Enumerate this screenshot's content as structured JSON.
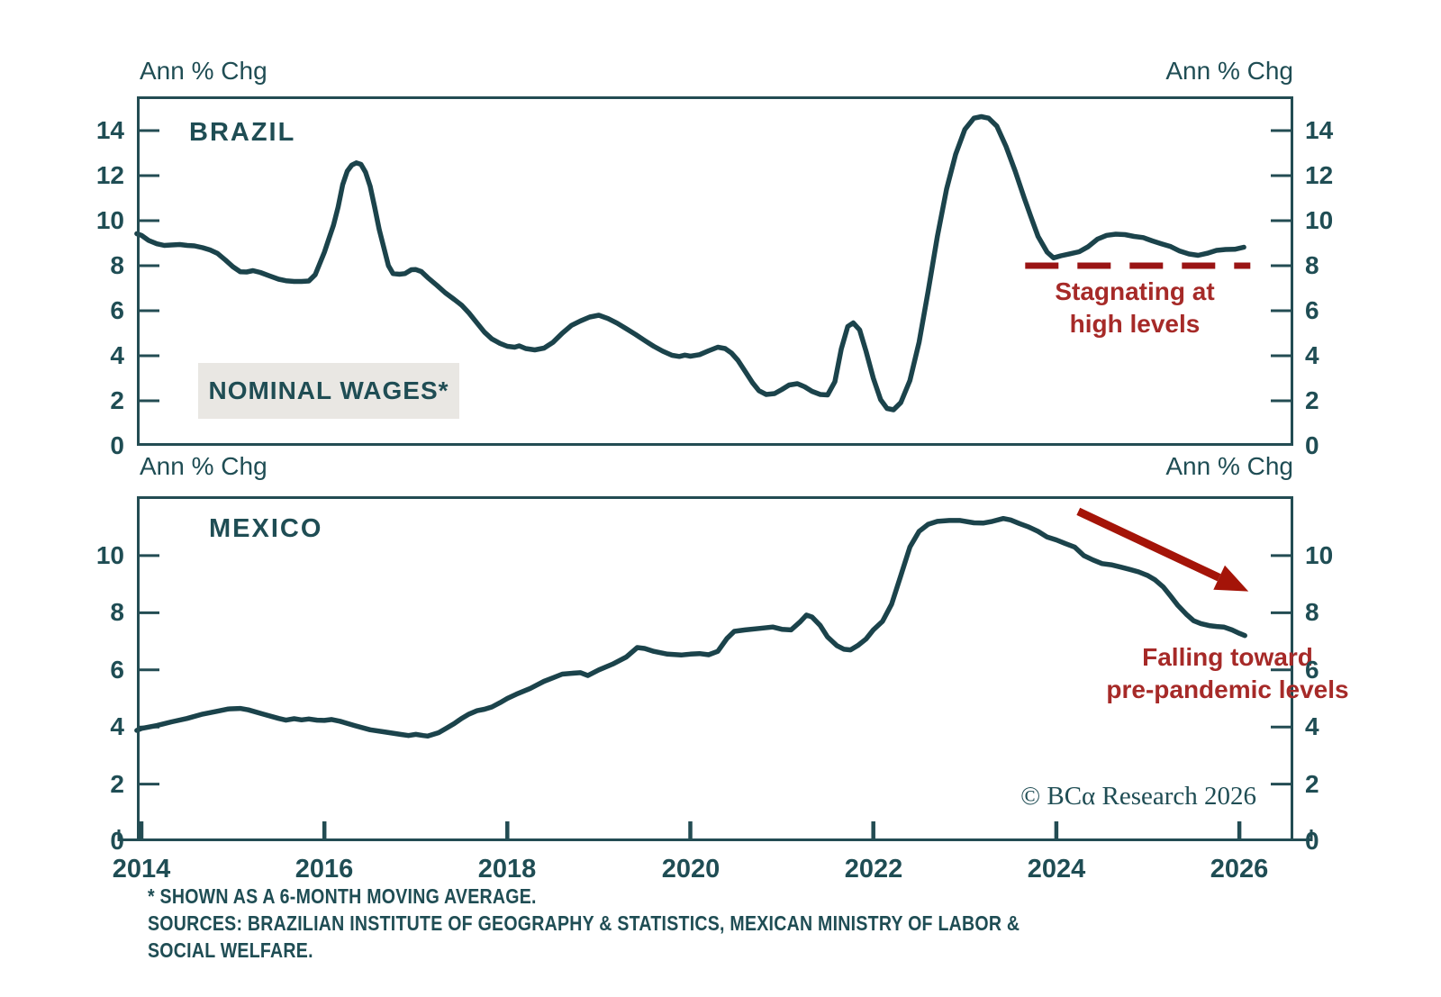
{
  "colors": {
    "teal_text": "#1f4d54",
    "line": "#1b434b",
    "frame": "#234c53",
    "red_dash": "#9a1414",
    "red_arrow": "#a41408",
    "red_text": "#a62a28",
    "label_box_bg": "#e9e7e3"
  },
  "units": {
    "top_left": "Ann % Chg",
    "top_right": "Ann % Chg",
    "bottom_left": "Ann % Chg",
    "bottom_right": "Ann % Chg"
  },
  "copyright": "© BCα Research 2026",
  "footnotes": [
    "* SHOWN AS A 6-MONTH MOVING AVERAGE.",
    "SOURCES: BRAZILIAN INSTITUTE OF GEOGRAPHY & STATISTICS, MEXICAN MINISTRY OF LABOR &",
    "SOCIAL WELFARE."
  ],
  "chart_data": [
    {
      "id": "brazil",
      "type": "line",
      "title": "BRAZIL",
      "series_label": "NOMINAL WAGES*",
      "ylabel": "Ann % Chg",
      "ylim": [
        0,
        15.52
      ],
      "yticks": [
        0,
        2,
        4,
        6,
        8,
        10,
        12,
        14
      ],
      "xlim": [
        2013.951,
        2026.59
      ],
      "xticks": [
        2014,
        2016,
        2018,
        2020,
        2022,
        2024,
        2026
      ],
      "xtick_labels": [
        "2014",
        "2016",
        "2018",
        "2020",
        "2022",
        "2024",
        "2026"
      ],
      "show_xticks": false,
      "grid": false,
      "annotation": {
        "text": [
          "Stagnating at",
          "high levels"
        ]
      },
      "ref_dash": {
        "y": 8,
        "from": 2023.66,
        "to": 2026.12
      },
      "points": [
        [
          2013.95,
          9.42
        ],
        [
          2014.0,
          9.35
        ],
        [
          2014.08,
          9.12
        ],
        [
          2014.17,
          8.97
        ],
        [
          2014.25,
          8.9
        ],
        [
          2014.33,
          8.92
        ],
        [
          2014.42,
          8.94
        ],
        [
          2014.5,
          8.9
        ],
        [
          2014.58,
          8.88
        ],
        [
          2014.67,
          8.8
        ],
        [
          2014.75,
          8.7
        ],
        [
          2014.83,
          8.55
        ],
        [
          2014.92,
          8.25
        ],
        [
          2015.0,
          7.95
        ],
        [
          2015.08,
          7.73
        ],
        [
          2015.15,
          7.72
        ],
        [
          2015.22,
          7.78
        ],
        [
          2015.3,
          7.7
        ],
        [
          2015.4,
          7.55
        ],
        [
          2015.5,
          7.4
        ],
        [
          2015.58,
          7.33
        ],
        [
          2015.67,
          7.3
        ],
        [
          2015.75,
          7.3
        ],
        [
          2015.83,
          7.32
        ],
        [
          2015.9,
          7.6
        ],
        [
          2015.95,
          8.1
        ],
        [
          2016.0,
          8.6
        ],
        [
          2016.05,
          9.2
        ],
        [
          2016.1,
          9.8
        ],
        [
          2016.15,
          10.6
        ],
        [
          2016.2,
          11.6
        ],
        [
          2016.25,
          12.2
        ],
        [
          2016.3,
          12.47
        ],
        [
          2016.35,
          12.57
        ],
        [
          2016.4,
          12.5
        ],
        [
          2016.45,
          12.15
        ],
        [
          2016.5,
          11.53
        ],
        [
          2016.55,
          10.6
        ],
        [
          2016.6,
          9.6
        ],
        [
          2016.65,
          8.8
        ],
        [
          2016.7,
          8.0
        ],
        [
          2016.75,
          7.65
        ],
        [
          2016.82,
          7.62
        ],
        [
          2016.88,
          7.65
        ],
        [
          2016.95,
          7.82
        ],
        [
          2017.0,
          7.83
        ],
        [
          2017.06,
          7.74
        ],
        [
          2017.13,
          7.47
        ],
        [
          2017.23,
          7.13
        ],
        [
          2017.32,
          6.8
        ],
        [
          2017.42,
          6.5
        ],
        [
          2017.5,
          6.25
        ],
        [
          2017.58,
          5.9
        ],
        [
          2017.67,
          5.45
        ],
        [
          2017.75,
          5.05
        ],
        [
          2017.83,
          4.75
        ],
        [
          2017.92,
          4.55
        ],
        [
          2018.0,
          4.42
        ],
        [
          2018.08,
          4.38
        ],
        [
          2018.13,
          4.44
        ],
        [
          2018.2,
          4.32
        ],
        [
          2018.3,
          4.26
        ],
        [
          2018.4,
          4.34
        ],
        [
          2018.5,
          4.6
        ],
        [
          2018.6,
          5.0
        ],
        [
          2018.7,
          5.35
        ],
        [
          2018.8,
          5.55
        ],
        [
          2018.9,
          5.72
        ],
        [
          2019.0,
          5.8
        ],
        [
          2019.1,
          5.65
        ],
        [
          2019.2,
          5.45
        ],
        [
          2019.3,
          5.2
        ],
        [
          2019.4,
          4.95
        ],
        [
          2019.5,
          4.68
        ],
        [
          2019.6,
          4.42
        ],
        [
          2019.7,
          4.2
        ],
        [
          2019.8,
          4.02
        ],
        [
          2019.88,
          3.97
        ],
        [
          2019.94,
          4.03
        ],
        [
          2020.0,
          3.98
        ],
        [
          2020.1,
          4.05
        ],
        [
          2020.2,
          4.22
        ],
        [
          2020.3,
          4.38
        ],
        [
          2020.38,
          4.32
        ],
        [
          2020.45,
          4.12
        ],
        [
          2020.52,
          3.8
        ],
        [
          2020.6,
          3.3
        ],
        [
          2020.68,
          2.8
        ],
        [
          2020.75,
          2.45
        ],
        [
          2020.83,
          2.28
        ],
        [
          2020.92,
          2.32
        ],
        [
          2021.0,
          2.5
        ],
        [
          2021.08,
          2.7
        ],
        [
          2021.17,
          2.76
        ],
        [
          2021.25,
          2.62
        ],
        [
          2021.33,
          2.42
        ],
        [
          2021.42,
          2.28
        ],
        [
          2021.5,
          2.26
        ],
        [
          2021.58,
          2.85
        ],
        [
          2021.65,
          4.3
        ],
        [
          2021.72,
          5.3
        ],
        [
          2021.78,
          5.46
        ],
        [
          2021.85,
          5.15
        ],
        [
          2021.92,
          4.2
        ],
        [
          2022.0,
          3.0
        ],
        [
          2022.08,
          2.05
        ],
        [
          2022.15,
          1.66
        ],
        [
          2022.22,
          1.6
        ],
        [
          2022.3,
          1.92
        ],
        [
          2022.4,
          2.9
        ],
        [
          2022.5,
          4.6
        ],
        [
          2022.6,
          6.9
        ],
        [
          2022.7,
          9.3
        ],
        [
          2022.8,
          11.4
        ],
        [
          2022.9,
          12.95
        ],
        [
          2023.0,
          14.05
        ],
        [
          2023.1,
          14.55
        ],
        [
          2023.18,
          14.62
        ],
        [
          2023.26,
          14.55
        ],
        [
          2023.35,
          14.2
        ],
        [
          2023.45,
          13.3
        ],
        [
          2023.55,
          12.2
        ],
        [
          2023.65,
          11.0
        ],
        [
          2023.72,
          10.2
        ],
        [
          2023.8,
          9.3
        ],
        [
          2023.9,
          8.6
        ],
        [
          2023.97,
          8.35
        ],
        [
          2024.05,
          8.44
        ],
        [
          2024.15,
          8.53
        ],
        [
          2024.25,
          8.62
        ],
        [
          2024.35,
          8.85
        ],
        [
          2024.45,
          9.18
        ],
        [
          2024.55,
          9.35
        ],
        [
          2024.65,
          9.4
        ],
        [
          2024.75,
          9.38
        ],
        [
          2024.85,
          9.3
        ],
        [
          2024.95,
          9.25
        ],
        [
          2025.05,
          9.1
        ],
        [
          2025.15,
          8.97
        ],
        [
          2025.25,
          8.85
        ],
        [
          2025.35,
          8.65
        ],
        [
          2025.45,
          8.52
        ],
        [
          2025.55,
          8.46
        ],
        [
          2025.65,
          8.55
        ],
        [
          2025.75,
          8.68
        ],
        [
          2025.85,
          8.72
        ],
        [
          2025.95,
          8.73
        ],
        [
          2026.05,
          8.82
        ]
      ]
    },
    {
      "id": "mexico",
      "type": "line",
      "title": "MEXICO",
      "ylabel": "Ann % Chg",
      "ylim": [
        0,
        12.08
      ],
      "yticks": [
        0,
        2,
        4,
        6,
        8,
        10
      ],
      "xlim": [
        2013.951,
        2026.59
      ],
      "xticks": [
        2014,
        2016,
        2018,
        2020,
        2022,
        2024,
        2026
      ],
      "xtick_labels": [
        "2014",
        "2016",
        "2018",
        "2020",
        "2022",
        "2024",
        "2026"
      ],
      "show_xticks": true,
      "grid": false,
      "annotation": {
        "text": [
          "Falling toward",
          "pre-pandemic levels"
        ]
      },
      "arrow": {
        "from": [
          2024.24,
          11.55
        ],
        "to": [
          2026.1,
          8.75
        ]
      },
      "points": [
        [
          2013.95,
          3.88
        ],
        [
          2014.0,
          3.95
        ],
        [
          2014.17,
          4.05
        ],
        [
          2014.33,
          4.18
        ],
        [
          2014.5,
          4.3
        ],
        [
          2014.67,
          4.45
        ],
        [
          2014.83,
          4.55
        ],
        [
          2014.95,
          4.63
        ],
        [
          2015.08,
          4.65
        ],
        [
          2015.17,
          4.6
        ],
        [
          2015.33,
          4.45
        ],
        [
          2015.5,
          4.3
        ],
        [
          2015.58,
          4.24
        ],
        [
          2015.67,
          4.29
        ],
        [
          2015.75,
          4.25
        ],
        [
          2015.83,
          4.28
        ],
        [
          2015.92,
          4.24
        ],
        [
          2016.0,
          4.23
        ],
        [
          2016.08,
          4.26
        ],
        [
          2016.17,
          4.2
        ],
        [
          2016.33,
          4.05
        ],
        [
          2016.5,
          3.9
        ],
        [
          2016.67,
          3.82
        ],
        [
          2016.83,
          3.74
        ],
        [
          2016.92,
          3.7
        ],
        [
          2017.0,
          3.74
        ],
        [
          2017.08,
          3.7
        ],
        [
          2017.13,
          3.68
        ],
        [
          2017.25,
          3.8
        ],
        [
          2017.33,
          3.95
        ],
        [
          2017.42,
          4.12
        ],
        [
          2017.5,
          4.3
        ],
        [
          2017.58,
          4.45
        ],
        [
          2017.67,
          4.57
        ],
        [
          2017.75,
          4.62
        ],
        [
          2017.83,
          4.7
        ],
        [
          2017.92,
          4.85
        ],
        [
          2018.0,
          5.0
        ],
        [
          2018.1,
          5.15
        ],
        [
          2018.25,
          5.35
        ],
        [
          2018.4,
          5.6
        ],
        [
          2018.5,
          5.72
        ],
        [
          2018.6,
          5.85
        ],
        [
          2018.7,
          5.88
        ],
        [
          2018.8,
          5.9
        ],
        [
          2018.88,
          5.8
        ],
        [
          2019.0,
          6.0
        ],
        [
          2019.15,
          6.2
        ],
        [
          2019.3,
          6.45
        ],
        [
          2019.42,
          6.78
        ],
        [
          2019.5,
          6.75
        ],
        [
          2019.6,
          6.65
        ],
        [
          2019.75,
          6.55
        ],
        [
          2019.9,
          6.52
        ],
        [
          2020.0,
          6.55
        ],
        [
          2020.1,
          6.57
        ],
        [
          2020.2,
          6.53
        ],
        [
          2020.3,
          6.65
        ],
        [
          2020.4,
          7.1
        ],
        [
          2020.48,
          7.35
        ],
        [
          2020.6,
          7.4
        ],
        [
          2020.75,
          7.45
        ],
        [
          2020.9,
          7.5
        ],
        [
          2021.0,
          7.42
        ],
        [
          2021.1,
          7.4
        ],
        [
          2021.2,
          7.68
        ],
        [
          2021.27,
          7.92
        ],
        [
          2021.33,
          7.85
        ],
        [
          2021.42,
          7.55
        ],
        [
          2021.5,
          7.15
        ],
        [
          2021.6,
          6.85
        ],
        [
          2021.68,
          6.72
        ],
        [
          2021.75,
          6.7
        ],
        [
          2021.83,
          6.85
        ],
        [
          2021.92,
          7.08
        ],
        [
          2022.0,
          7.4
        ],
        [
          2022.1,
          7.7
        ],
        [
          2022.2,
          8.3
        ],
        [
          2022.3,
          9.3
        ],
        [
          2022.4,
          10.3
        ],
        [
          2022.5,
          10.85
        ],
        [
          2022.6,
          11.1
        ],
        [
          2022.7,
          11.2
        ],
        [
          2022.83,
          11.23
        ],
        [
          2022.95,
          11.23
        ],
        [
          2023.1,
          11.15
        ],
        [
          2023.2,
          11.14
        ],
        [
          2023.3,
          11.2
        ],
        [
          2023.42,
          11.3
        ],
        [
          2023.5,
          11.25
        ],
        [
          2023.6,
          11.12
        ],
        [
          2023.7,
          11.0
        ],
        [
          2023.8,
          10.85
        ],
        [
          2023.9,
          10.65
        ],
        [
          2024.0,
          10.55
        ],
        [
          2024.1,
          10.42
        ],
        [
          2024.2,
          10.3
        ],
        [
          2024.3,
          10.0
        ],
        [
          2024.4,
          9.85
        ],
        [
          2024.5,
          9.72
        ],
        [
          2024.6,
          9.68
        ],
        [
          2024.7,
          9.6
        ],
        [
          2024.8,
          9.52
        ],
        [
          2024.9,
          9.43
        ],
        [
          2025.0,
          9.3
        ],
        [
          2025.08,
          9.15
        ],
        [
          2025.17,
          8.9
        ],
        [
          2025.25,
          8.58
        ],
        [
          2025.33,
          8.25
        ],
        [
          2025.42,
          7.95
        ],
        [
          2025.5,
          7.72
        ],
        [
          2025.58,
          7.62
        ],
        [
          2025.67,
          7.55
        ],
        [
          2025.75,
          7.52
        ],
        [
          2025.83,
          7.5
        ],
        [
          2025.92,
          7.4
        ],
        [
          2026.0,
          7.28
        ],
        [
          2026.06,
          7.2
        ]
      ]
    }
  ]
}
